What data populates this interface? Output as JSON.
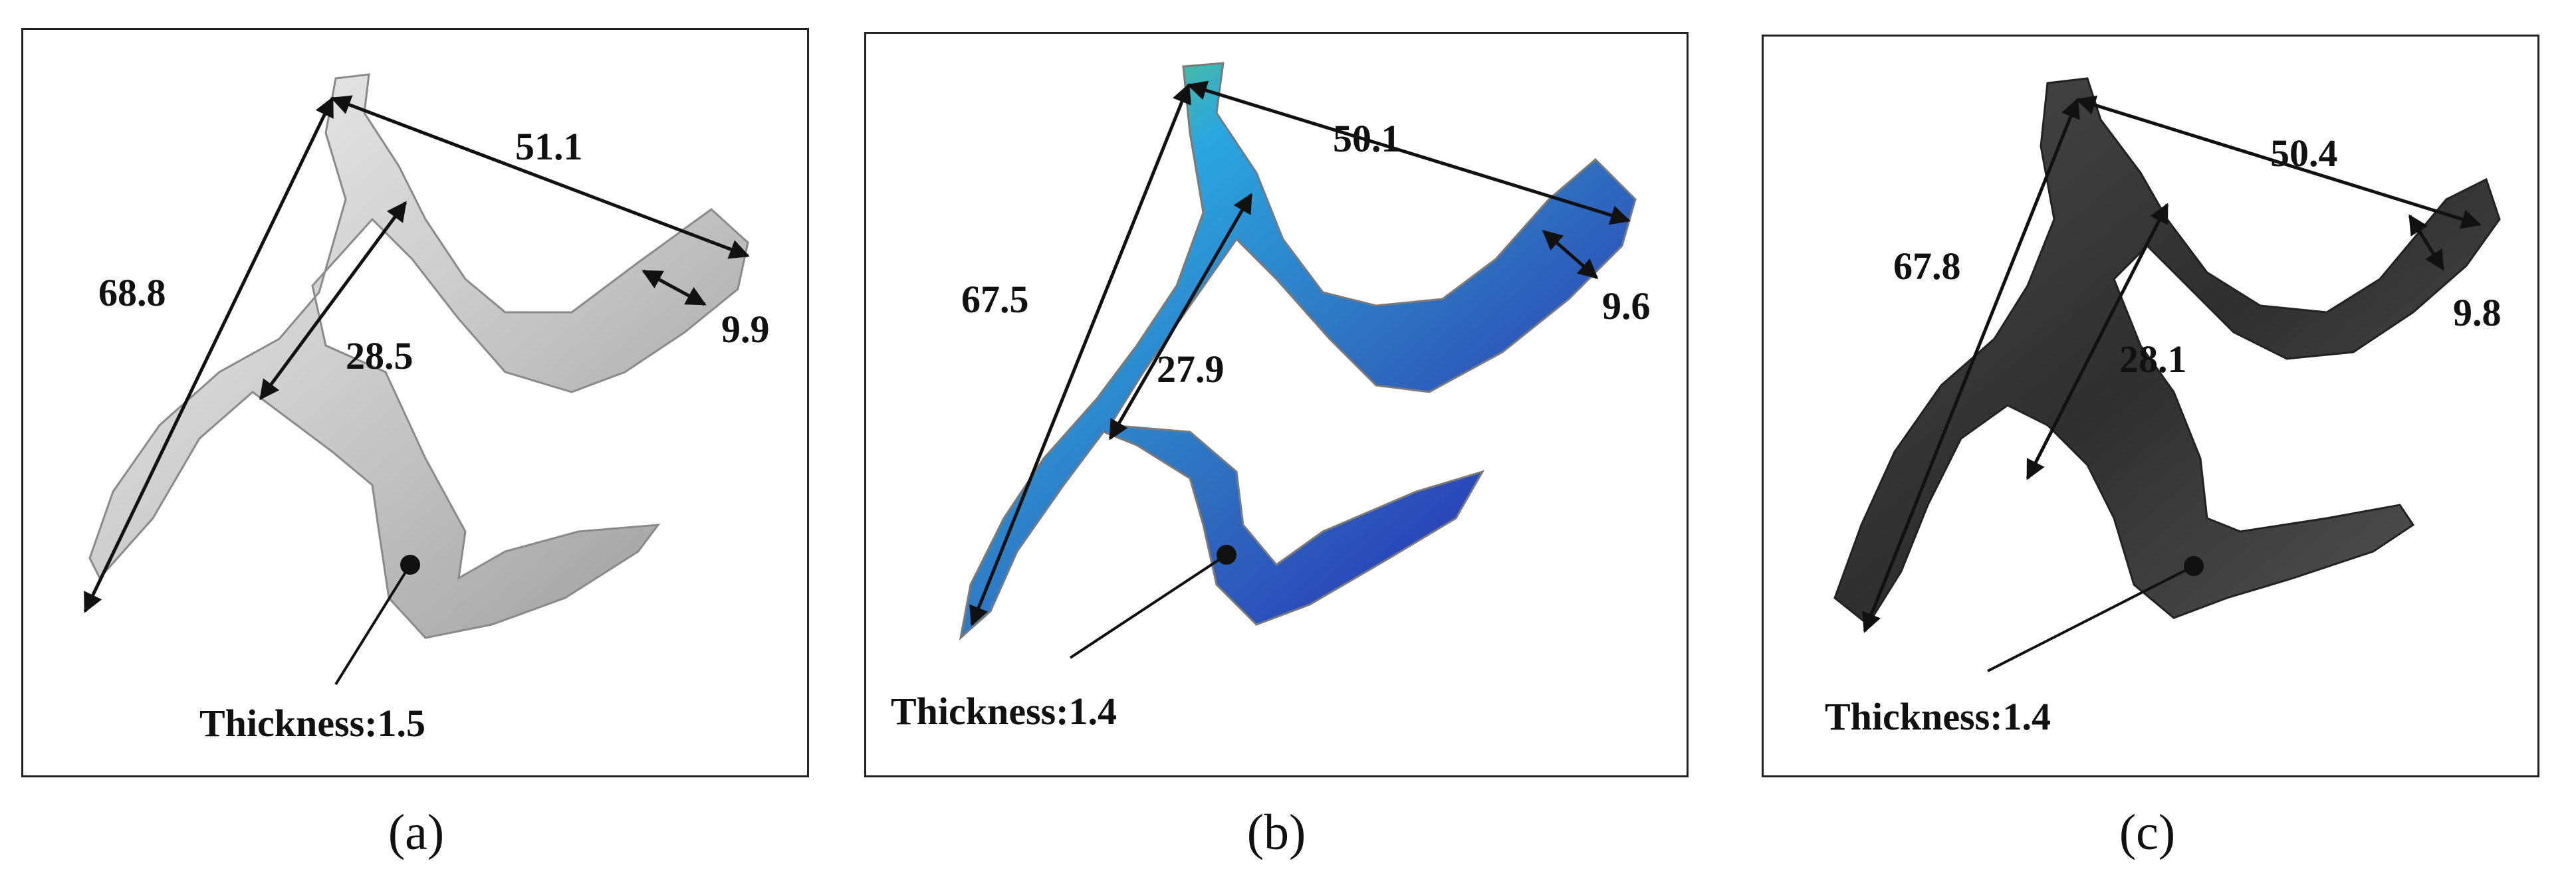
{
  "panels": [
    {
      "caption": "(a)",
      "dims": {
        "long": "68.8",
        "top": "51.1",
        "mid": "28.5",
        "width": "9.9"
      },
      "thickness_label": "Thickness:1.5"
    },
    {
      "caption": "(b)",
      "dims": {
        "long": "67.5",
        "top": "50.1",
        "mid": "27.9",
        "width": "9.6"
      },
      "thickness_label": "Thickness:1.4"
    },
    {
      "caption": "(c)",
      "dims": {
        "long": "67.8",
        "top": "50.4",
        "mid": "28.1",
        "width": "9.8"
      },
      "thickness_label": "Thickness:1.4"
    }
  ]
}
